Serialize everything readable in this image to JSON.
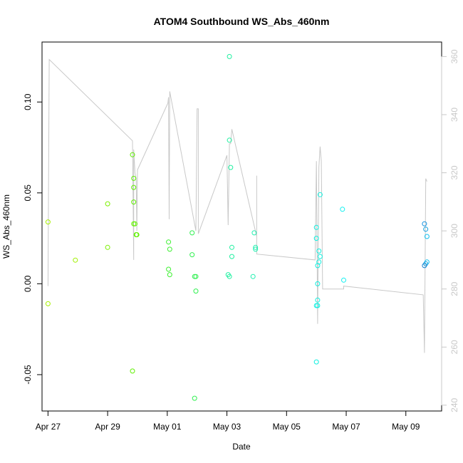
{
  "chart_data": {
    "type": "scatter",
    "title": "ATOM4 Southbound WS_Abs_460nm",
    "xlabel": "Date",
    "ylabel": "WS_Abs_460nm",
    "xlim": [
      "2023-04-26T19:12",
      "2023-05-10T04:48"
    ],
    "ylim": [
      -0.07,
      0.133
    ],
    "x_ticks": [
      {
        "date": "2023-04-27",
        "label": "Apr 27"
      },
      {
        "date": "2023-04-29",
        "label": "Apr 29"
      },
      {
        "date": "2023-05-01",
        "label": "May 01"
      },
      {
        "date": "2023-05-03",
        "label": "May 03"
      },
      {
        "date": "2023-05-05",
        "label": "May 05"
      },
      {
        "date": "2023-05-07",
        "label": "May 07"
      },
      {
        "date": "2023-05-09",
        "label": "May 09"
      }
    ],
    "y_ticks": [
      -0.05,
      0.0,
      0.05,
      0.1
    ],
    "y2lim": [
      238,
      365
    ],
    "y2_ticks": [
      240,
      260,
      280,
      300,
      320,
      340,
      360
    ],
    "grid": false,
    "points": [
      {
        "x": "2023-04-27T00:00",
        "y": 0.034,
        "color": "#a6f000"
      },
      {
        "x": "2023-04-27T00:00",
        "y": -0.011,
        "color": "#a6f000"
      },
      {
        "x": "2023-04-27T22:00",
        "y": 0.013,
        "color": "#a0f000"
      },
      {
        "x": "2023-04-29T00:00",
        "y": 0.044,
        "color": "#7cf000"
      },
      {
        "x": "2023-04-29T00:00",
        "y": 0.02,
        "color": "#7cf000"
      },
      {
        "x": "2023-04-29T20:00",
        "y": 0.071,
        "color": "#5ff000"
      },
      {
        "x": "2023-04-29T21:00",
        "y": 0.058,
        "color": "#5ff000"
      },
      {
        "x": "2023-04-29T21:00",
        "y": 0.053,
        "color": "#5ff000"
      },
      {
        "x": "2023-04-29T21:00",
        "y": 0.045,
        "color": "#5ff000"
      },
      {
        "x": "2023-04-29T21:00",
        "y": 0.033,
        "color": "#5ff000"
      },
      {
        "x": "2023-04-29T22:00",
        "y": 0.033,
        "color": "#5ff000"
      },
      {
        "x": "2023-04-29T23:00",
        "y": 0.027,
        "color": "#5ff000"
      },
      {
        "x": "2023-04-29T23:30",
        "y": 0.027,
        "color": "#5ff000"
      },
      {
        "x": "2023-04-29T20:00",
        "y": -0.048,
        "color": "#5ff000"
      },
      {
        "x": "2023-05-01T01:00",
        "y": 0.023,
        "color": "#3cf030"
      },
      {
        "x": "2023-05-01T02:00",
        "y": 0.019,
        "color": "#3cf030"
      },
      {
        "x": "2023-05-01T01:00",
        "y": 0.008,
        "color": "#3cf030"
      },
      {
        "x": "2023-05-01T02:00",
        "y": 0.005,
        "color": "#3cf030"
      },
      {
        "x": "2023-05-01T20:00",
        "y": 0.028,
        "color": "#30f050"
      },
      {
        "x": "2023-05-01T20:00",
        "y": 0.016,
        "color": "#30f050"
      },
      {
        "x": "2023-05-01T22:00",
        "y": 0.004,
        "color": "#30f050"
      },
      {
        "x": "2023-05-01T23:00",
        "y": 0.004,
        "color": "#30f050"
      },
      {
        "x": "2023-05-01T23:00",
        "y": -0.004,
        "color": "#30f050"
      },
      {
        "x": "2023-05-01T22:00",
        "y": -0.063,
        "color": "#30f050"
      },
      {
        "x": "2023-05-03T02:00",
        "y": 0.125,
        "color": "#20f0a0"
      },
      {
        "x": "2023-05-03T02:00",
        "y": 0.079,
        "color": "#20f0a0"
      },
      {
        "x": "2023-05-03T03:00",
        "y": 0.064,
        "color": "#20f0a0"
      },
      {
        "x": "2023-05-03T04:00",
        "y": 0.02,
        "color": "#20f0a0"
      },
      {
        "x": "2023-05-03T04:00",
        "y": 0.015,
        "color": "#20f0a0"
      },
      {
        "x": "2023-05-03T01:00",
        "y": 0.005,
        "color": "#20f0a0"
      },
      {
        "x": "2023-05-03T02:00",
        "y": 0.004,
        "color": "#20f0a0"
      },
      {
        "x": "2023-05-03T22:00",
        "y": 0.028,
        "color": "#20f0b0"
      },
      {
        "x": "2023-05-03T23:00",
        "y": 0.02,
        "color": "#20f0b0"
      },
      {
        "x": "2023-05-03T23:00",
        "y": 0.019,
        "color": "#20f0b0"
      },
      {
        "x": "2023-05-03T21:00",
        "y": 0.004,
        "color": "#20f0b0"
      },
      {
        "x": "2023-05-06T00:00",
        "y": 0.031,
        "color": "#10f0e0"
      },
      {
        "x": "2023-05-06T00:00",
        "y": 0.025,
        "color": "#10f0e0"
      },
      {
        "x": "2023-05-06T03:00",
        "y": 0.049,
        "color": "#10f0e0"
      },
      {
        "x": "2023-05-06T02:00",
        "y": 0.018,
        "color": "#10f0e0"
      },
      {
        "x": "2023-05-06T03:00",
        "y": 0.015,
        "color": "#10f0e0"
      },
      {
        "x": "2023-05-06T02:00",
        "y": 0.012,
        "color": "#10f0e0"
      },
      {
        "x": "2023-05-06T01:00",
        "y": 0.01,
        "color": "#10f0e0"
      },
      {
        "x": "2023-05-06T01:00",
        "y": 0.0,
        "color": "#10f0e0"
      },
      {
        "x": "2023-05-06T01:00",
        "y": -0.009,
        "color": "#10f0e0"
      },
      {
        "x": "2023-05-06T00:00",
        "y": -0.012,
        "color": "#10f0e0"
      },
      {
        "x": "2023-05-06T01:00",
        "y": -0.012,
        "color": "#10f0e0"
      },
      {
        "x": "2023-05-06T00:00",
        "y": -0.043,
        "color": "#10f0e0"
      },
      {
        "x": "2023-05-06T21:00",
        "y": 0.041,
        "color": "#10f0f0"
      },
      {
        "x": "2023-05-06T22:00",
        "y": 0.002,
        "color": "#10f0f0"
      },
      {
        "x": "2023-05-09T15:00",
        "y": 0.033,
        "color": "#1090e0"
      },
      {
        "x": "2023-05-09T16:00",
        "y": 0.03,
        "color": "#10a0e0"
      },
      {
        "x": "2023-05-09T17:00",
        "y": 0.026,
        "color": "#10c0f0"
      },
      {
        "x": "2023-05-09T17:00",
        "y": 0.012,
        "color": "#10c0f0"
      },
      {
        "x": "2023-05-09T16:00",
        "y": 0.011,
        "color": "#10a0e0"
      },
      {
        "x": "2023-05-09T15:00",
        "y": 0.01,
        "color": "#1080d0"
      }
    ],
    "line_series": {
      "axis": "right",
      "color": "#c8c8c8",
      "points": [
        {
          "x": "2023-04-27T00:00",
          "y": 281
        },
        {
          "x": "2023-04-27T01:00",
          "y": 359
        },
        {
          "x": "2023-04-29T20:00",
          "y": 331
        },
        {
          "x": "2023-04-29T21:00",
          "y": 290
        },
        {
          "x": "2023-04-29T21:00",
          "y": 328
        },
        {
          "x": "2023-04-29T22:00",
          "y": 320
        },
        {
          "x": "2023-04-29T23:00",
          "y": 318
        },
        {
          "x": "2023-04-29T23:30",
          "y": 300
        },
        {
          "x": "2023-04-30T00:00",
          "y": 321
        },
        {
          "x": "2023-05-01T00:30",
          "y": 344
        },
        {
          "x": "2023-05-01T01:00",
          "y": 346
        },
        {
          "x": "2023-05-01T01:30",
          "y": 304
        },
        {
          "x": "2023-05-01T02:00",
          "y": 348
        },
        {
          "x": "2023-05-01T23:00",
          "y": 300
        },
        {
          "x": "2023-05-02T00:00",
          "y": 342
        },
        {
          "x": "2023-05-02T01:00",
          "y": 342
        },
        {
          "x": "2023-05-02T01:00",
          "y": 299
        },
        {
          "x": "2023-05-03T00:00",
          "y": 326
        },
        {
          "x": "2023-05-03T01:00",
          "y": 302
        },
        {
          "x": "2023-05-03T02:00",
          "y": 330
        },
        {
          "x": "2023-05-03T03:00",
          "y": 330
        },
        {
          "x": "2023-05-03T04:00",
          "y": 335
        },
        {
          "x": "2023-05-04T00:00",
          "y": 298
        },
        {
          "x": "2023-05-04T00:00",
          "y": 319
        },
        {
          "x": "2023-05-04T00:00",
          "y": 292
        },
        {
          "x": "2023-05-05T23:00",
          "y": 290
        },
        {
          "x": "2023-05-06T00:00",
          "y": 324
        },
        {
          "x": "2023-05-06T01:00",
          "y": 268
        },
        {
          "x": "2023-05-06T02:00",
          "y": 322
        },
        {
          "x": "2023-05-06T03:00",
          "y": 329
        },
        {
          "x": "2023-05-06T04:00",
          "y": 324
        },
        {
          "x": "2023-05-06T05:00",
          "y": 280
        },
        {
          "x": "2023-05-06T22:00",
          "y": 280
        },
        {
          "x": "2023-05-06T22:00",
          "y": 281
        },
        {
          "x": "2023-05-09T14:00",
          "y": 278
        },
        {
          "x": "2023-05-09T15:00",
          "y": 258
        },
        {
          "x": "2023-05-09T16:00",
          "y": 318
        },
        {
          "x": "2023-05-09T17:00",
          "y": 317
        }
      ]
    }
  }
}
